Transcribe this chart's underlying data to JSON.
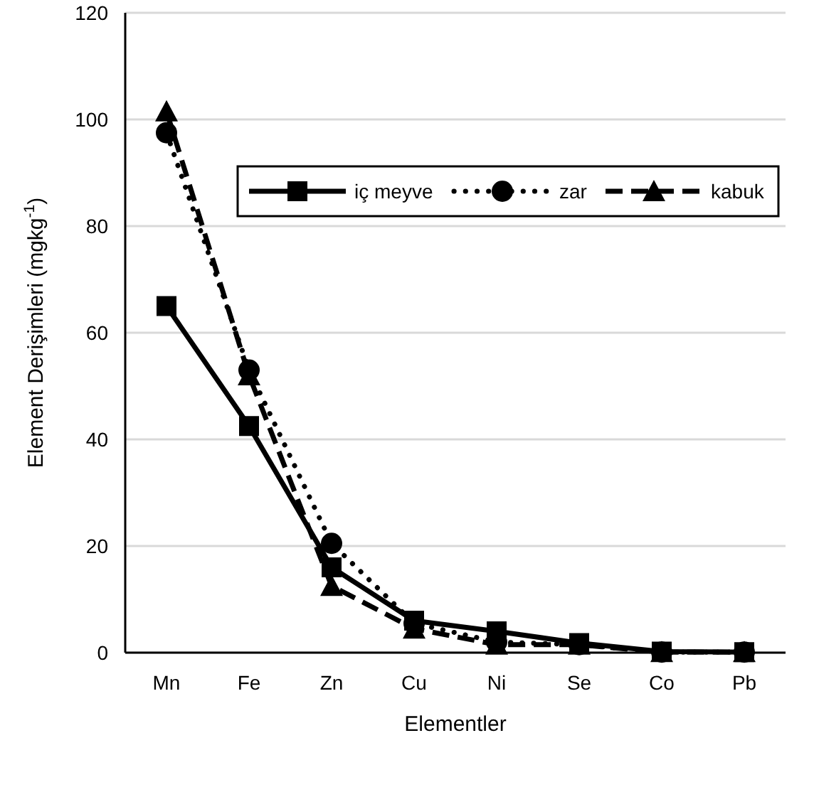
{
  "chart_data": {
    "type": "line",
    "xlabel": "Elementler",
    "ylabel": "Element Derişimleri (mgkg$^{-1}$)",
    "categories": [
      "Mn",
      "Fe",
      "Zn",
      "Cu",
      "Ni",
      "Se",
      "Co",
      "Pb"
    ],
    "series": [
      {
        "name": "iç meyve",
        "color": "#000000",
        "marker": "square",
        "line_style": "solid",
        "values": [
          65,
          42.5,
          16,
          6,
          4,
          1.8,
          0.2,
          0.1
        ]
      },
      {
        "name": "zar",
        "color": "#000000",
        "marker": "circle",
        "line_style": "dotted",
        "values": [
          97.5,
          53,
          20.5,
          5.5,
          2,
          1.5,
          0.1,
          0.1
        ]
      },
      {
        "name": "kabuk",
        "color": "#000000",
        "marker": "triangle",
        "line_style": "dashed",
        "values": [
          101.5,
          52,
          12.5,
          4.5,
          1.5,
          1.5,
          0.1,
          0.1
        ]
      }
    ],
    "ylim": [
      0,
      120
    ],
    "yticks": [
      0,
      20,
      40,
      60,
      80,
      100,
      120
    ],
    "grid": "y",
    "legend": "top right"
  }
}
